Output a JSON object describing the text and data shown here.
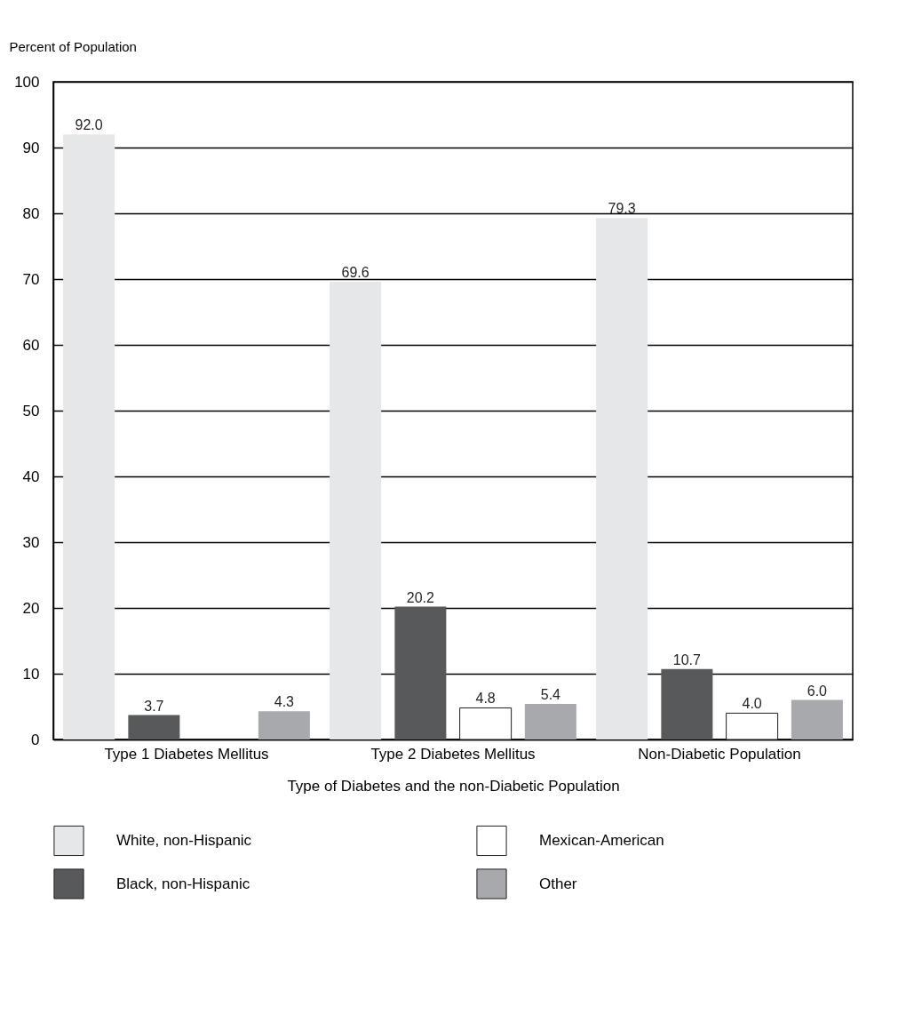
{
  "chart_data": {
    "type": "bar",
    "xlabel": "Type of Diabetes and the non-Diabetic Population",
    "ylabel": "Percent of Population",
    "categories": [
      "Type 1 Diabetes Mellitus",
      "Type 2 Diabetes Mellitus",
      "Non-Diabetic Population"
    ],
    "series": [
      {
        "name": "White, non-Hispanic",
        "color": "#e6e7e8",
        "values": [
          92.0,
          69.6,
          79.3
        ],
        "value_labels": [
          "92.0",
          "69.6",
          "79.3"
        ]
      },
      {
        "name": "Black, non-Hispanic",
        "color": "#58595b",
        "values": [
          3.7,
          20.2,
          10.7
        ],
        "value_labels": [
          "3.7",
          "20.2",
          "10.7"
        ]
      },
      {
        "name": "Mexican-American",
        "color": "#ffffff",
        "values": [
          null,
          4.8,
          4.0
        ],
        "value_labels": [
          null,
          "4.8",
          "4.0"
        ]
      },
      {
        "name": "Other",
        "color": "#a7a9ac",
        "values": [
          4.3,
          5.4,
          6.0
        ],
        "value_labels": [
          "4.3",
          "5.4",
          "6.0"
        ]
      }
    ],
    "ylim": [
      0,
      100
    ],
    "yticks": [
      0,
      10,
      20,
      30,
      40,
      50,
      60,
      70,
      80,
      90,
      100
    ],
    "grid": "y",
    "legend": "bottom"
  }
}
